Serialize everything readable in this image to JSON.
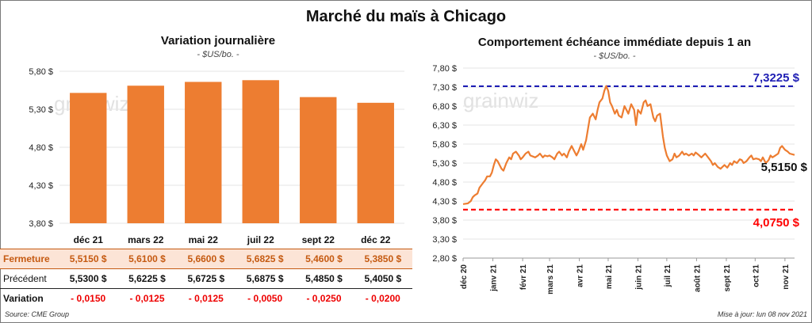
{
  "title": "Marché du maïs à Chicago",
  "left": {
    "subtitle": "Variation journalière",
    "unit": "- $US/bo. -",
    "watermark": "grainwiz",
    "table": {
      "rows": [
        {
          "label": "Fermeture",
          "values": [
            "5,5150  $",
            "5,6100  $",
            "5,6600  $",
            "5,6825  $",
            "5,4600  $",
            "5,3850  $"
          ]
        },
        {
          "label": "Précédent",
          "values": [
            "5,5300  $",
            "5,6225  $",
            "5,6725  $",
            "5,6875  $",
            "5,4850  $",
            "5,4050  $"
          ]
        },
        {
          "label": "Variation",
          "values": [
            "- 0,0150",
            "- 0,0125",
            "- 0,0125",
            "- 0,0050",
            "- 0,0250",
            "- 0,0200"
          ]
        }
      ]
    }
  },
  "right": {
    "subtitle": "Comportement  échéance immédiate depuis 1 an",
    "unit": "- $US/bo. -",
    "watermark": "grainwiz",
    "high_label": "7,3225 $",
    "low_label": "4,0750 $",
    "last_label": "5,5150 $"
  },
  "footer": {
    "source": "Source: CME Group",
    "updated": "Mise à jour: lun 08 nov 2021"
  },
  "chart_data": [
    {
      "type": "bar",
      "title": "Variation journalière",
      "categories": [
        "déc 21",
        "mars 22",
        "mai 22",
        "juil 22",
        "sept 22",
        "déc 22"
      ],
      "values": [
        5.515,
        5.61,
        5.66,
        5.6825,
        5.46,
        5.385
      ],
      "ylim": [
        3.8,
        5.8
      ],
      "yticks": [
        "3,80 $",
        "4,30 $",
        "4,80 $",
        "5,30 $",
        "5,80 $"
      ],
      "ytick_values": [
        3.8,
        4.3,
        4.8,
        5.3,
        5.8
      ],
      "color": "#ed7d31"
    },
    {
      "type": "line",
      "title": "Comportement  échéance immédiate depuis 1 an",
      "ylim": [
        2.8,
        7.8
      ],
      "yticks": [
        "2,80 $",
        "3,30 $",
        "3,80 $",
        "4,30 $",
        "4,80 $",
        "5,30 $",
        "5,80 $",
        "6,30 $",
        "6,80 $",
        "7,30 $",
        "7,80 $"
      ],
      "ytick_values": [
        2.8,
        3.3,
        3.8,
        4.3,
        4.8,
        5.3,
        5.8,
        6.3,
        6.8,
        7.3,
        7.8
      ],
      "x_range": [
        0,
        345
      ],
      "xticks": [
        {
          "label": "déc 20",
          "day": 0
        },
        {
          "label": "janv 21",
          "day": 31
        },
        {
          "label": "févr 21",
          "day": 62
        },
        {
          "label": "mars 21",
          "day": 90
        },
        {
          "label": "avr 21",
          "day": 121
        },
        {
          "label": "mai 21",
          "day": 151
        },
        {
          "label": "juin 21",
          "day": 182
        },
        {
          "label": "juil 21",
          "day": 212
        },
        {
          "label": "août 21",
          "day": 243
        },
        {
          "label": "sept 21",
          "day": 274
        },
        {
          "label": "oct 21",
          "day": 304
        },
        {
          "label": "nov 21",
          "day": 335
        }
      ],
      "series": [
        {
          "color": "#ed7d31",
          "x": [
            0,
            5,
            8,
            10,
            12,
            15,
            17,
            20,
            23,
            25,
            28,
            30,
            32,
            34,
            36,
            38,
            40,
            42,
            45,
            48,
            50,
            52,
            55,
            58,
            60,
            62,
            65,
            68,
            70,
            75,
            78,
            80,
            83,
            85,
            88,
            90,
            93,
            95,
            98,
            100,
            103,
            105,
            108,
            110,
            113,
            115,
            118,
            120,
            123,
            125,
            128,
            130,
            132,
            135,
            138,
            140,
            142,
            145,
            147,
            149,
            151,
            153,
            155,
            158,
            160,
            162,
            165,
            168,
            170,
            172,
            175,
            178,
            180,
            182,
            185,
            188,
            190,
            192,
            195,
            198,
            200,
            202,
            205,
            208,
            210,
            212,
            215,
            218,
            220,
            222,
            225,
            228,
            230,
            232,
            235,
            238,
            240,
            242,
            245,
            248,
            250,
            252,
            255,
            258,
            260,
            262,
            265,
            268,
            270,
            272,
            275,
            278,
            280,
            282,
            285,
            288,
            290,
            292,
            295,
            298,
            300,
            302,
            305,
            308,
            310,
            312,
            315,
            318,
            320,
            322,
            325,
            328,
            330,
            332,
            335,
            338,
            340,
            345
          ],
          "y": [
            4.22,
            4.24,
            4.3,
            4.4,
            4.45,
            4.5,
            4.65,
            4.75,
            4.85,
            4.95,
            4.95,
            5.05,
            5.25,
            5.4,
            5.35,
            5.25,
            5.15,
            5.1,
            5.3,
            5.45,
            5.4,
            5.55,
            5.6,
            5.5,
            5.4,
            5.45,
            5.55,
            5.6,
            5.5,
            5.45,
            5.5,
            5.55,
            5.45,
            5.5,
            5.48,
            5.5,
            5.45,
            5.4,
            5.55,
            5.6,
            5.5,
            5.55,
            5.45,
            5.6,
            5.75,
            5.65,
            5.5,
            5.6,
            5.8,
            5.65,
            5.9,
            6.2,
            6.5,
            6.6,
            6.45,
            6.7,
            6.9,
            7.0,
            7.2,
            7.33,
            7.2,
            6.9,
            6.8,
            6.6,
            6.7,
            6.55,
            6.5,
            6.8,
            6.7,
            6.6,
            6.85,
            6.7,
            6.3,
            6.7,
            6.6,
            6.9,
            6.95,
            6.8,
            6.85,
            6.5,
            6.4,
            6.55,
            6.6,
            6.0,
            5.7,
            5.5,
            5.35,
            5.4,
            5.55,
            5.45,
            5.5,
            5.6,
            5.52,
            5.55,
            5.5,
            5.55,
            5.5,
            5.58,
            5.52,
            5.45,
            5.5,
            5.55,
            5.45,
            5.35,
            5.25,
            5.3,
            5.2,
            5.15,
            5.2,
            5.25,
            5.18,
            5.3,
            5.25,
            5.35,
            5.3,
            5.4,
            5.38,
            5.3,
            5.35,
            5.45,
            5.5,
            5.4,
            5.42,
            5.4,
            5.35,
            5.45,
            5.3,
            5.38,
            5.5,
            5.45,
            5.5,
            5.55,
            5.7,
            5.75,
            5.65,
            5.6,
            5.55,
            5.515
          ]
        }
      ],
      "reference_lines": [
        {
          "value": 7.3225,
          "color": "#1f1fb4",
          "style": "dashed"
        },
        {
          "value": 4.075,
          "color": "#ff0000",
          "style": "dashed"
        }
      ]
    }
  ]
}
